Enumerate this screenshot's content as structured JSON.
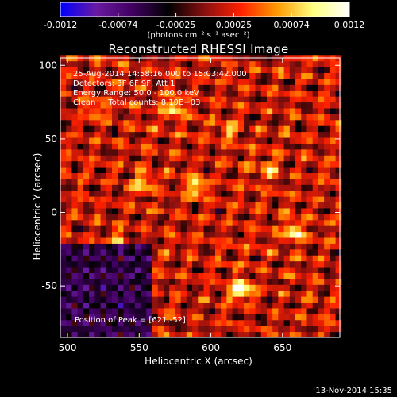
{
  "chart_data": {
    "type": "heatmap",
    "title": "Reconstructed RHESSI Image",
    "xlabel": "Heliocentric X (arcsec)",
    "ylabel": "Heliocentric Y (arcsec)",
    "xlim": [
      495,
      690
    ],
    "ylim": [
      -85,
      105
    ],
    "x_ticks": [
      500,
      550,
      600,
      650
    ],
    "y_ticks": [
      -50,
      0,
      50,
      100
    ],
    "colorbar": {
      "range": [
        -0.0012,
        0.0012
      ],
      "ticks": [
        "-0.0012",
        "-0.00074",
        "-0.00025",
        "0.00025",
        "0.00074",
        "0.0012"
      ],
      "unit": "(photons cm⁻² s⁻¹ asec⁻²)",
      "colormap": [
        "#0000ff",
        "#6a1aa0",
        "#400060",
        "#000000",
        "#8a1010",
        "#ff2000",
        "#ff9a00",
        "#ffff80",
        "#ffffff"
      ]
    },
    "peaks": [
      {
        "x": 621,
        "y": -52,
        "value": 0.0012
      },
      {
        "x": 590,
        "y": 18,
        "value": 0.00095
      },
      {
        "x": 658,
        "y": -13,
        "value": 0.0009
      },
      {
        "x": 574,
        "y": 72,
        "value": 0.0008
      },
      {
        "x": 612,
        "y": 55,
        "value": 0.0006
      },
      {
        "x": 553,
        "y": 20,
        "value": 0.0007
      },
      {
        "x": 520,
        "y": 70,
        "value": 0.0006
      },
      {
        "x": 535,
        "y": -20,
        "value": 0.0006
      },
      {
        "x": 640,
        "y": 30,
        "value": 0.0006
      }
    ],
    "background": 0.0002,
    "negative_region": {
      "x": [
        495,
        560
      ],
      "y": [
        -85,
        -20
      ],
      "value": -0.0005
    }
  },
  "info": {
    "line1": "25-Aug-2014 14:58:16.000 to 15:03:42.000",
    "line2": "Detectors: 3F 6F 9F, Att 1",
    "line3": "Energy Range: 50.0 - 100.0 keV",
    "line4": "Clean     Total counts: 8.19E+03",
    "peak": "Position of Peak = [621,-52]"
  },
  "footer": "13-Nov-2014 15:35"
}
